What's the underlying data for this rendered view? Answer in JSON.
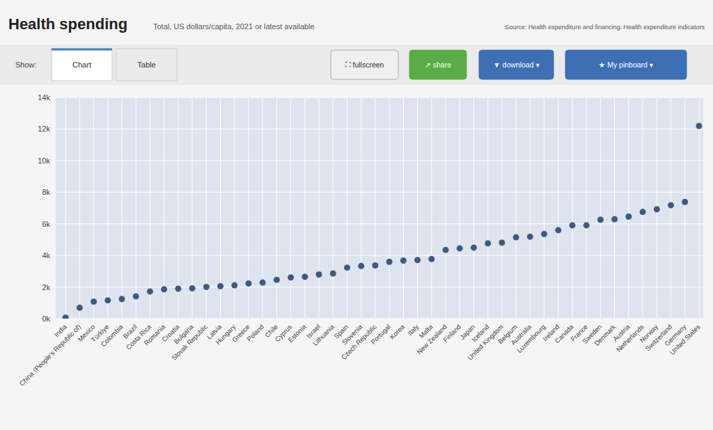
{
  "chart_data": {
    "type": "dot",
    "title": "Health spending",
    "subtitle": "Total, US dollars/capita, 2021 or latest available",
    "annotations": [
      "Source: Health expenditure and financing: Health expenditure indicators",
      "Show:",
      "Chart",
      "Table",
      "⛶ fullscreen",
      "↗ share",
      "▼ download ▾",
      "★ My pinboard ▾"
    ],
    "categories": [
      "India",
      "China (People's Republic of)",
      "Mexico",
      "Türkiye",
      "Colombia",
      "Brazil",
      "Costa Rica",
      "Romania",
      "Croatia",
      "Bulgaria",
      "Slovak Republic",
      "Latvia",
      "Hungary",
      "Greece",
      "Poland",
      "Chile",
      "Cyprus",
      "Estonia",
      "Israel",
      "Lithuania",
      "Spain",
      "Slovenia",
      "Czech Republic",
      "Portugal",
      "Korea",
      "Italy",
      "Malta",
      "New Zealand",
      "Finland",
      "Japan",
      "Iceland",
      "United Kingdom",
      "Belgium",
      "Australia",
      "Luxembourg",
      "Ireland",
      "Canada",
      "France",
      "Sweden",
      "Denmark",
      "Austria",
      "Netherlands",
      "Norway",
      "Switzerland",
      "Germany",
      "United States"
    ],
    "values": [
      67,
      688,
      1080,
      1161,
      1245,
      1412,
      1722,
      1855,
      1897,
      1920,
      2006,
      2053,
      2110,
      2227,
      2286,
      2458,
      2606,
      2649,
      2794,
      2861,
      3228,
      3330,
      3368,
      3600,
      3677,
      3710,
      3771,
      4351,
      4452,
      4495,
      4766,
      4808,
      5146,
      5187,
      5358,
      5597,
      5905,
      5906,
      6262,
      6296,
      6462,
      6753,
      6922,
      7179,
      7383,
      12197
    ],
    "color": "#3d5a80",
    "ylim": [
      0,
      14000
    ],
    "yticks": [
      {
        "value": 0,
        "label": "0k"
      },
      {
        "value": 2000,
        "label": "2k"
      },
      {
        "value": 4000,
        "label": "4k"
      },
      {
        "value": 6000,
        "label": "6k"
      },
      {
        "value": 8000,
        "label": "8k"
      },
      {
        "value": 10000,
        "label": "10k"
      },
      {
        "value": 12000,
        "label": "12k"
      },
      {
        "value": 14000,
        "label": "14k"
      }
    ],
    "grid": true
  }
}
